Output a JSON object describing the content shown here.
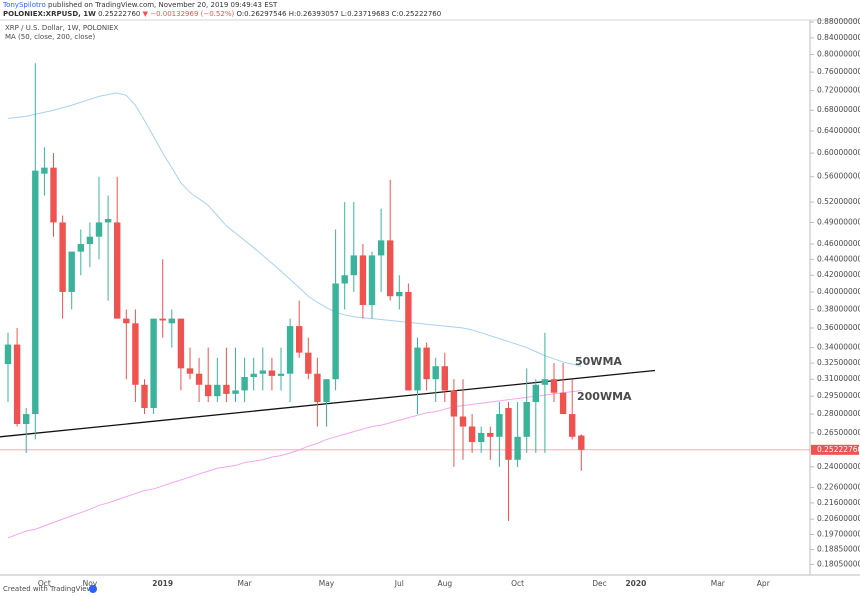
{
  "header": {
    "user": "TonySpilotro",
    "published": "published on TradingView.com, November 20, 2019 09:49:43 EST",
    "symbol": "POLONIEX:XRPUSD, 1W",
    "last": "0.25222760",
    "arrow": "▼",
    "change": "−0.00132969 (−0.52%)",
    "ohlc": "O:0.26297546 H:0.26393057 L:0.23719683 C:0.25222760"
  },
  "footer": "Created with TradingView",
  "chart_data": {
    "type": "candlestick",
    "title": "XRP / U.S. Dollar, 1W, POLONIEX",
    "subtitle": "MA (50, close, 200, close)",
    "y_scale": "log",
    "up_color": "#3bb39a",
    "down_color": "#ef5350",
    "ylim": [
      0.175,
      0.885
    ],
    "yticks": [
      {
        "value": 0.88,
        "label": "0.88000000"
      },
      {
        "value": 0.84,
        "label": "0.84000000"
      },
      {
        "value": 0.8,
        "label": "0.80000000"
      },
      {
        "value": 0.76,
        "label": "0.76000000"
      },
      {
        "value": 0.72,
        "label": "0.72000000"
      },
      {
        "value": 0.68,
        "label": "0.68000000"
      },
      {
        "value": 0.64,
        "label": "0.64000000"
      },
      {
        "value": 0.6,
        "label": "0.60000000"
      },
      {
        "value": 0.56,
        "label": "0.56000000"
      },
      {
        "value": 0.52,
        "label": "0.52000000"
      },
      {
        "value": 0.49,
        "label": "0.49000000"
      },
      {
        "value": 0.46,
        "label": "0.46000000"
      },
      {
        "value": 0.44,
        "label": "0.44000000"
      },
      {
        "value": 0.42,
        "label": "0.42000000"
      },
      {
        "value": 0.4,
        "label": "0.40000000"
      },
      {
        "value": 0.38,
        "label": "0.38000000"
      },
      {
        "value": 0.36,
        "label": "0.36000000"
      },
      {
        "value": 0.34,
        "label": "0.34000000"
      },
      {
        "value": 0.325,
        "label": "0.32500000"
      },
      {
        "value": 0.31,
        "label": "0.31000000"
      },
      {
        "value": 0.295,
        "label": "0.29500000"
      },
      {
        "value": 0.28,
        "label": "0.28000000"
      },
      {
        "value": 0.265,
        "label": "0.26500000"
      },
      {
        "value": 0.24,
        "label": "0.24000000"
      },
      {
        "value": 0.226,
        "label": "0.22600000"
      },
      {
        "value": 0.216,
        "label": "0.21600000"
      },
      {
        "value": 0.206,
        "label": "0.20600000"
      },
      {
        "value": 0.197,
        "label": "0.19700000"
      },
      {
        "value": 0.1885,
        "label": "0.18850000"
      },
      {
        "value": 0.1805,
        "label": "0.18050000"
      }
    ],
    "categories": [
      null,
      null,
      null,
      null,
      "Oct",
      null,
      null,
      null,
      null,
      "Nov",
      null,
      null,
      null,
      null,
      null,
      null,
      null,
      "2019",
      null,
      null,
      null,
      null,
      null,
      null,
      null,
      null,
      "Mar",
      null,
      null,
      null,
      null,
      null,
      null,
      null,
      null,
      "May",
      null,
      null,
      null,
      null,
      null,
      null,
      null,
      "Jul",
      null,
      null,
      null,
      null,
      "Aug",
      null,
      null,
      null,
      null,
      null,
      null,
      null,
      "Oct",
      null,
      null,
      null,
      null,
      null,
      null,
      null,
      null,
      "Dec",
      null,
      null,
      null,
      "2020",
      null,
      null,
      null,
      null,
      null,
      null,
      null,
      null,
      "Mar",
      null,
      null,
      null,
      null,
      "Apr",
      null,
      null,
      null,
      null
    ],
    "open": [
      0.324,
      0.343,
      0.272,
      0.28,
      0.565,
      0.575,
      0.49,
      0.4,
      0.45,
      0.46,
      0.47,
      0.49,
      0.49,
      0.37,
      0.365,
      0.305,
      0.285,
      0.37,
      0.365,
      0.37,
      0.32,
      0.315,
      0.305,
      0.295,
      0.305,
      0.297,
      0.3,
      0.312,
      0.315,
      0.318,
      0.313,
      0.315,
      0.362,
      0.335,
      0.315,
      0.29,
      0.31,
      0.41,
      0.42,
      0.445,
      0.385,
      0.445,
      0.465,
      0.395,
      0.4,
      0.3,
      0.34,
      0.31,
      0.322,
      0.3,
      0.278,
      0.27,
      0.258,
      0.265,
      0.262,
      0.285,
      0.245,
      0.262,
      0.29,
      0.305,
      0.31,
      0.298,
      0.28,
      0.26297546,
      null,
      null,
      null,
      null,
      null,
      null,
      null,
      null,
      null,
      null,
      null,
      null,
      null,
      null,
      null,
      null,
      null,
      null,
      null,
      null,
      null,
      null,
      null,
      null
    ],
    "high": [
      0.355,
      0.36,
      0.285,
      0.78,
      0.61,
      0.6,
      0.5,
      0.45,
      0.48,
      0.49,
      0.56,
      0.53,
      0.56,
      0.38,
      0.38,
      0.31,
      0.37,
      0.44,
      0.38,
      0.37,
      0.34,
      0.33,
      0.34,
      0.33,
      0.34,
      0.34,
      0.33,
      0.33,
      0.34,
      0.33,
      0.34,
      0.37,
      0.39,
      0.35,
      0.33,
      0.31,
      0.48,
      0.52,
      0.52,
      0.46,
      0.45,
      0.51,
      0.555,
      0.42,
      0.41,
      0.35,
      0.345,
      0.33,
      0.335,
      0.31,
      0.31,
      0.28,
      0.27,
      0.27,
      0.29,
      0.29,
      0.29,
      0.32,
      0.31,
      0.355,
      0.325,
      0.325,
      0.31,
      0.26393057,
      null,
      null,
      null,
      null,
      null,
      null,
      null,
      null,
      null,
      null,
      null,
      null,
      null,
      null,
      null,
      null,
      null,
      null,
      null,
      null,
      null,
      null,
      null,
      null
    ],
    "low": [
      0.29,
      0.27,
      0.25,
      0.26,
      0.53,
      0.47,
      0.37,
      0.38,
      0.42,
      0.43,
      0.44,
      0.39,
      0.37,
      0.31,
      0.29,
      0.28,
      0.28,
      0.35,
      0.34,
      0.3,
      0.31,
      0.29,
      0.29,
      0.29,
      0.29,
      0.29,
      0.29,
      0.3,
      0.3,
      0.3,
      0.3,
      0.29,
      0.33,
      0.31,
      0.27,
      0.27,
      0.3,
      0.38,
      0.4,
      0.37,
      0.37,
      0.4,
      0.39,
      0.38,
      0.3,
      0.28,
      0.3,
      0.29,
      0.29,
      0.24,
      0.245,
      0.25,
      0.25,
      0.245,
      0.24,
      0.205,
      0.24,
      0.25,
      0.25,
      0.25,
      0.29,
      0.28,
      0.26,
      0.23719683,
      null,
      null,
      null,
      null,
      null,
      null,
      null,
      null,
      null,
      null,
      null,
      null,
      null,
      null,
      null,
      null,
      null,
      null,
      null,
      null,
      null,
      null,
      null,
      null
    ],
    "close": [
      0.343,
      0.272,
      0.28,
      0.57,
      0.575,
      0.49,
      0.4,
      0.45,
      0.46,
      0.47,
      0.49,
      0.495,
      0.37,
      0.365,
      0.305,
      0.285,
      0.37,
      0.368,
      0.37,
      0.32,
      0.315,
      0.305,
      0.295,
      0.305,
      0.297,
      0.3,
      0.312,
      0.315,
      0.318,
      0.313,
      0.315,
      0.362,
      0.335,
      0.315,
      0.29,
      0.31,
      0.41,
      0.42,
      0.445,
      0.385,
      0.445,
      0.465,
      0.395,
      0.4,
      0.3,
      0.34,
      0.31,
      0.322,
      0.3,
      0.278,
      0.27,
      0.258,
      0.265,
      0.262,
      0.28,
      0.245,
      0.262,
      0.29,
      0.305,
      0.31,
      0.298,
      0.28,
      0.262,
      0.2522276,
      null,
      null,
      null,
      null,
      null,
      null,
      null,
      null,
      null,
      null,
      null,
      null,
      null,
      null,
      null,
      null,
      null,
      null,
      null,
      null,
      null,
      null,
      null,
      null
    ],
    "last_price_label": "0.25222760",
    "last_price_color": "#f2a0b0",
    "series": [
      {
        "name": "50WMA",
        "color": "#a9d1ee",
        "label_color": "#2b7bbd",
        "values": [
          0.664,
          0.666,
          0.668,
          0.672,
          0.676,
          0.68,
          0.685,
          0.69,
          0.696,
          0.702,
          0.708,
          0.712,
          0.715,
          0.71,
          0.69,
          0.66,
          0.63,
          0.6,
          0.575,
          0.55,
          0.535,
          0.525,
          0.515,
          0.5,
          0.485,
          0.475,
          0.465,
          0.455,
          0.445,
          0.435,
          0.425,
          0.415,
          0.405,
          0.395,
          0.388,
          0.382,
          0.377,
          0.374,
          0.372,
          0.371,
          0.37,
          0.369,
          0.368,
          0.367,
          0.366,
          0.365,
          0.364,
          0.363,
          0.362,
          0.361,
          0.36,
          0.358,
          0.355,
          0.352,
          0.349,
          0.346,
          0.343,
          0.34,
          0.336,
          0.332,
          0.329,
          0.326,
          0.324,
          0.322,
          null,
          null,
          null,
          null,
          null,
          null,
          null,
          null,
          null,
          null,
          null,
          null,
          null,
          null,
          null,
          null,
          null,
          null,
          null,
          null,
          null,
          null,
          null,
          null
        ]
      },
      {
        "name": "200WMA",
        "color": "#f2a6f0",
        "label_color": "#d68fd6",
        "values": [
          0.195,
          0.197,
          0.199,
          0.2,
          0.202,
          0.204,
          0.206,
          0.208,
          0.21,
          0.212,
          0.2145,
          0.216,
          0.218,
          0.22,
          0.222,
          0.224,
          0.225,
          0.227,
          0.229,
          0.231,
          0.233,
          0.235,
          0.237,
          0.239,
          0.24,
          0.241,
          0.243,
          0.244,
          0.245,
          0.247,
          0.248,
          0.25,
          0.252,
          0.255,
          0.257,
          0.26,
          0.262,
          0.264,
          0.266,
          0.268,
          0.27,
          0.271,
          0.273,
          0.275,
          0.277,
          0.279,
          0.281,
          0.282,
          0.284,
          0.286,
          0.287,
          0.288,
          0.289,
          0.29,
          0.291,
          0.292,
          0.293,
          0.294,
          0.295,
          0.296,
          0.297,
          0.298,
          0.299,
          0.3,
          null,
          null,
          null,
          null,
          null,
          null,
          null,
          null,
          null,
          null,
          null,
          null,
          null,
          null,
          null,
          null,
          null,
          null,
          null,
          null,
          null,
          null,
          null,
          null
        ]
      }
    ],
    "trend_line": {
      "color": "#111111",
      "values": [
        0.262,
        0.318
      ]
    }
  }
}
